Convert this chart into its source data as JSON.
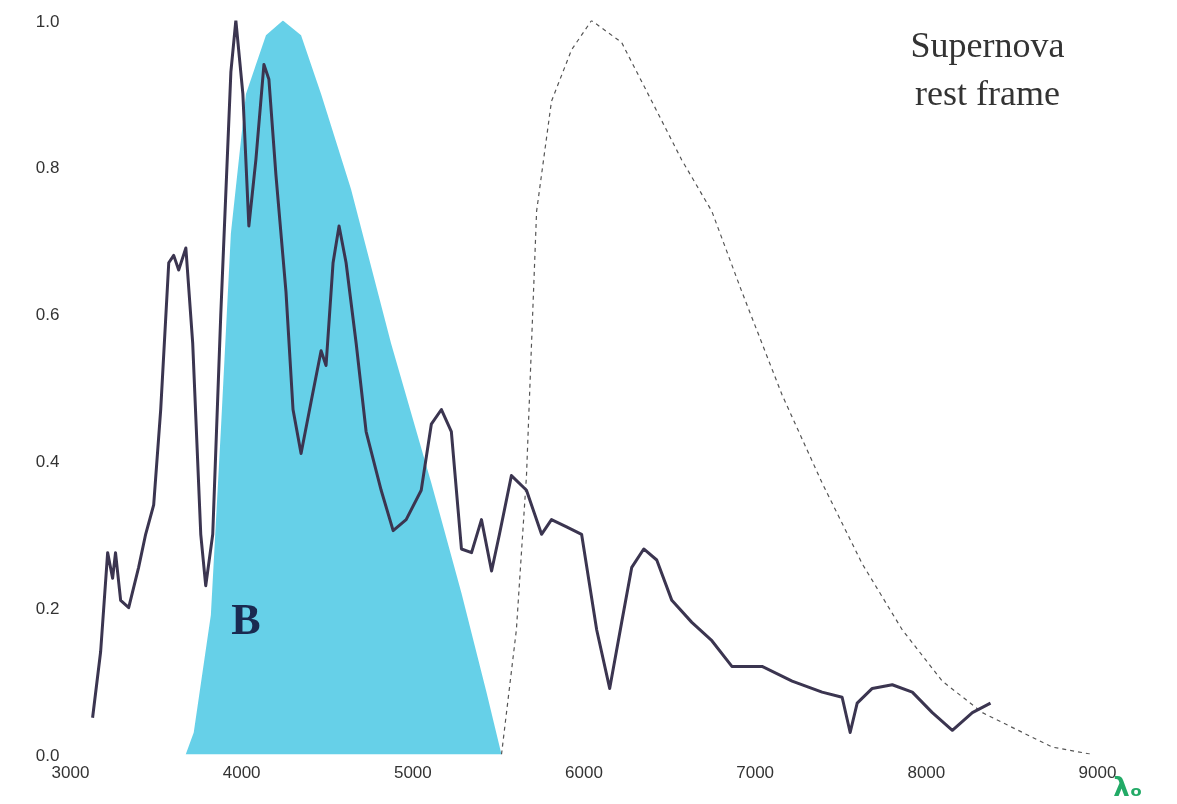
{
  "chart_data": {
    "type": "line",
    "xlabel": "λₒ",
    "annotations": [
      "Supernova rest frame"
    ],
    "xlim": [
      3000,
      9000
    ],
    "xticks": [
      3000,
      4000,
      5000,
      6000,
      7000,
      8000,
      9000
    ],
    "ylim": [
      0,
      1
    ],
    "yticks": [
      {
        "value": 0,
        "label": "0.0"
      },
      0.2,
      0.4,
      0.6,
      0.8,
      {
        "value": 1,
        "label": "1.0"
      }
    ],
    "series": [
      {
        "type": "area",
        "name": "B",
        "color": "#55cbe6",
        "x": [
          3673,
          3720,
          3820,
          3878,
          3937,
          4025,
          4142,
          4241,
          4347,
          4464,
          4639,
          4873,
          5108,
          5284,
          5430,
          5518
        ],
        "values": [
          0,
          0.03,
          0.19,
          0.44,
          0.71,
          0.9,
          0.98,
          1.0,
          0.98,
          0.9,
          0.77,
          0.56,
          0.37,
          0.22,
          0.085,
          0
        ]
      },
      {
        "line_style": "dashed",
        "color": "#555555",
        "x": [
          5518,
          5605,
          5664,
          5723,
          5810,
          5927,
          6044,
          6220,
          6396,
          6571,
          6747,
          6923,
          7157,
          7391,
          7625,
          7859,
          8093,
          8328,
          8562,
          8738,
          8972
        ],
        "values": [
          0,
          0.17,
          0.38,
          0.74,
          0.89,
          0.96,
          1.0,
          0.97,
          0.89,
          0.81,
          0.74,
          0.63,
          0.49,
          0.37,
          0.26,
          0.17,
          0.1,
          0.057,
          0.03,
          0.01,
          0
        ]
      },
      {
        "line_style": "solid",
        "color": "#3b3550",
        "x": [
          3129,
          3176,
          3217,
          3246,
          3263,
          3293,
          3340,
          3398,
          3439,
          3486,
          3527,
          3574,
          3603,
          3632,
          3674,
          3714,
          3761,
          3790,
          3831,
          3878,
          3937,
          3966,
          4007,
          4042,
          4083,
          4130,
          4159,
          4200,
          4259,
          4300,
          4347,
          4405,
          4464,
          4493,
          4534,
          4569,
          4610,
          4669,
          4727,
          4815,
          4885,
          4961,
          5049,
          5108,
          5167,
          5225,
          5284,
          5343,
          5401,
          5460,
          5506,
          5576,
          5664,
          5752,
          5810,
          5898,
          5986,
          6074,
          6150,
          6220,
          6279,
          6349,
          6425,
          6513,
          6630,
          6747,
          6864,
          7040,
          7216,
          7391,
          7508,
          7555,
          7596,
          7684,
          7801,
          7918,
          8035,
          8152,
          8269,
          8375
        ],
        "values": [
          0.05,
          0.14,
          0.275,
          0.24,
          0.275,
          0.21,
          0.2,
          0.255,
          0.3,
          0.34,
          0.47,
          0.67,
          0.68,
          0.66,
          0.69,
          0.56,
          0.3,
          0.23,
          0.3,
          0.6,
          0.93,
          1.0,
          0.9,
          0.72,
          0.81,
          0.94,
          0.92,
          0.79,
          0.63,
          0.47,
          0.41,
          0.48,
          0.55,
          0.53,
          0.67,
          0.72,
          0.67,
          0.56,
          0.44,
          0.36,
          0.305,
          0.32,
          0.36,
          0.45,
          0.47,
          0.44,
          0.28,
          0.275,
          0.32,
          0.25,
          0.3,
          0.38,
          0.36,
          0.3,
          0.32,
          0.31,
          0.3,
          0.17,
          0.09,
          0.18,
          0.255,
          0.28,
          0.265,
          0.21,
          0.18,
          0.155,
          0.12,
          0.12,
          0.1,
          0.085,
          0.078,
          0.03,
          0.07,
          0.09,
          0.095,
          0.085,
          0.057,
          0.033,
          0.057,
          0.07
        ]
      }
    ]
  }
}
